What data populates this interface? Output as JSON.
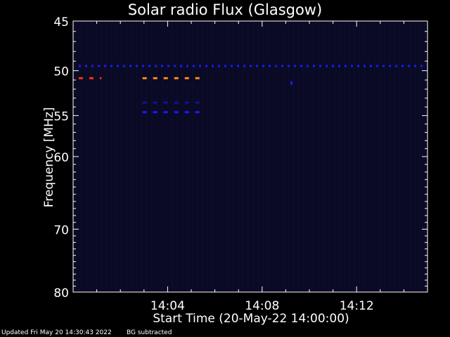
{
  "chart_data": {
    "type": "heatmap",
    "title": "Solar radio Flux (Glasgow)",
    "xlabel": "Start Time (20-May-22 14:00:00)",
    "ylabel": "Frequency [MHz]",
    "x_ticks": [
      "14:04",
      "14:08",
      "14:12"
    ],
    "x_tick_minutes": [
      4,
      8,
      12
    ],
    "xlim_minutes": [
      0,
      15
    ],
    "y_ticks": [
      "45",
      "50",
      "55",
      "60",
      "70",
      "80"
    ],
    "y_tick_values": [
      45,
      50,
      55,
      60,
      70,
      80
    ],
    "ylim": [
      45,
      80
    ],
    "y_scale": "log",
    "y_axis_direction": "inverted",
    "features": [
      {
        "name": "steady-line-49.5MHz",
        "freq_mhz": 49.5,
        "t_start": 0.0,
        "t_end": 15.0,
        "color": "#1a1aff",
        "dashed": true
      },
      {
        "name": "red-burst-50.8MHz",
        "freq_mhz": 50.8,
        "t_start": 0.0,
        "t_end": 1.2,
        "color": "#ff3010",
        "dashed": true
      },
      {
        "name": "orange-burst-50.8MHz",
        "freq_mhz": 50.8,
        "t_start": 2.7,
        "t_end": 5.5,
        "color": "#ff8a1a",
        "dashed": true
      },
      {
        "name": "line-53.5MHz",
        "freq_mhz": 53.5,
        "t_start": 2.7,
        "t_end": 5.5,
        "color": "#1010a0",
        "dashed": true
      },
      {
        "name": "line-54.6MHz",
        "freq_mhz": 54.6,
        "t_start": 2.7,
        "t_end": 5.5,
        "color": "#1a1aff",
        "dashed": true
      },
      {
        "name": "dot-51.3MHz",
        "freq_mhz": 51.3,
        "t_start": 9.2,
        "t_end": 9.3,
        "color": "#1a1aff",
        "dashed": false
      }
    ],
    "background": "#0a0a24",
    "grid": false,
    "legend": "none"
  },
  "footer": {
    "updated": "Updated Fri May 20 14:30:43 2022",
    "bg_note": "BG subtracted"
  },
  "colors": {
    "axis": "#ffffff",
    "page_bg": "#000000"
  }
}
